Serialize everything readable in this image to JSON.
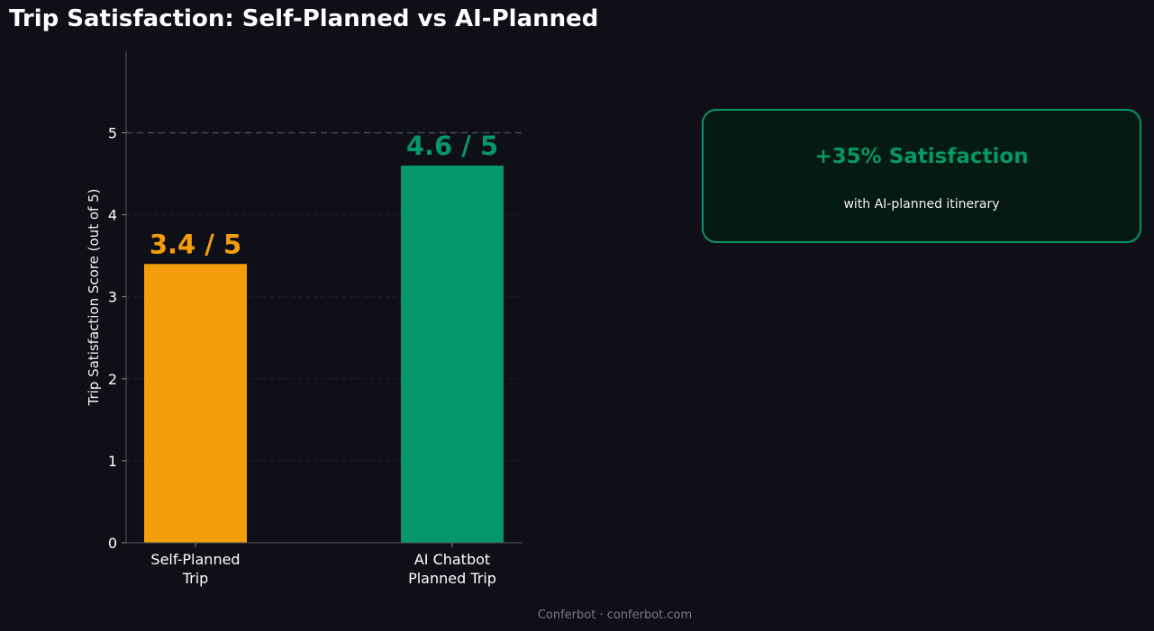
{
  "chart_data": {
    "type": "bar",
    "title": "Trip Satisfaction: Self-Planned vs AI-Planned",
    "ylabel": "Trip Satisfaction Score (out of 5)",
    "xlabel": "",
    "categories": [
      [
        "Self-Planned",
        "Trip"
      ],
      [
        "AI Chatbot",
        "Planned Trip"
      ]
    ],
    "values": [
      3.4,
      4.6
    ],
    "data_labels": [
      "3.4 / 5",
      "4.6 / 5"
    ],
    "colors": [
      "#f59e0b",
      "#059669"
    ],
    "ylim": [
      0,
      6
    ],
    "yticks": [
      0,
      1,
      2,
      3,
      4,
      5
    ],
    "reference_line": 5,
    "grid": "horizontal dashed",
    "legend": "none"
  },
  "callout": {
    "headline": "+35% Satisfaction",
    "subtext": "with AI-planned itinerary"
  },
  "footer": "Conferbot · conferbot.com",
  "colors": {
    "background": "#0f0f17",
    "self_planned": "#f59e0b",
    "ai_planned": "#059669",
    "callout_bg": "#051a12"
  }
}
